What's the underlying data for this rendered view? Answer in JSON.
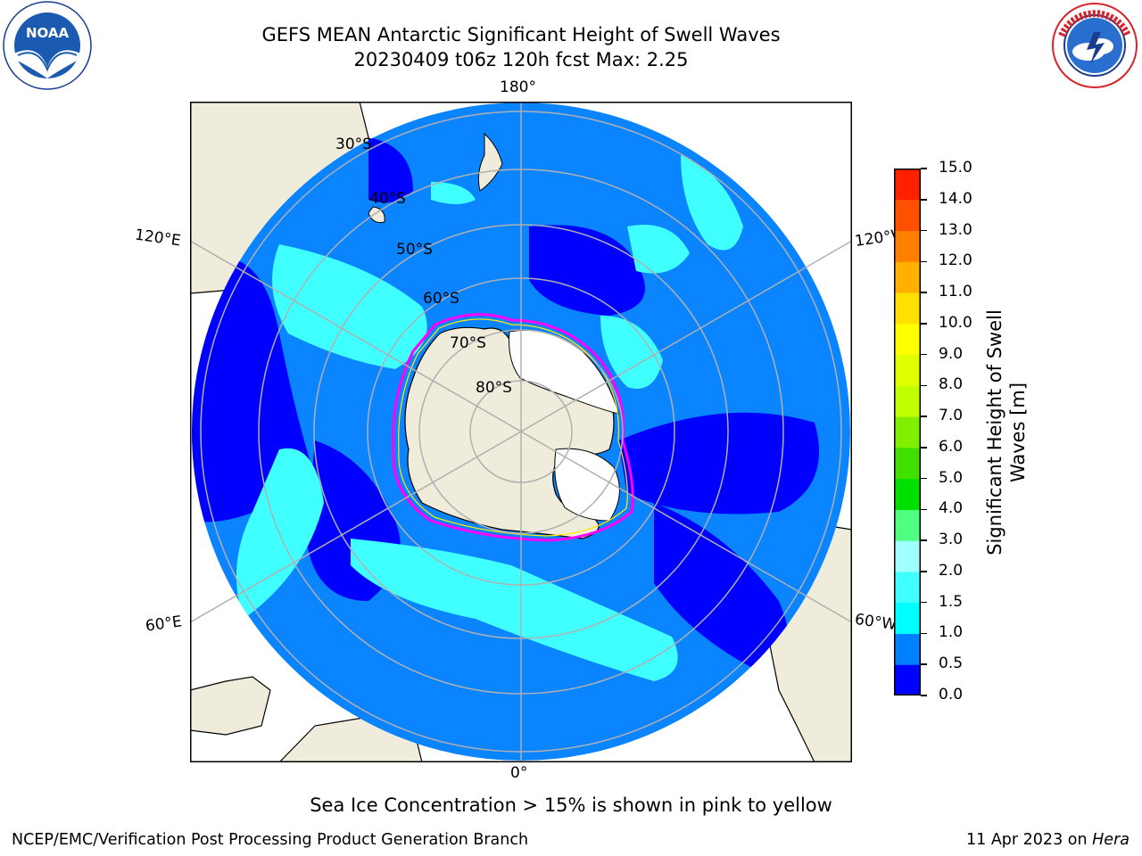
{
  "header": {
    "title_line1": "GEFS MEAN Antarctic Significant Height of Swell Waves",
    "title_line2": "20230409 t06z 120h fcst   Max: 2.25"
  },
  "logos": {
    "noaa": {
      "text": "NOAA",
      "ring_text": "NATIONAL OCEANIC AND ATMOSPHERIC ADMINISTRATION · U.S. DEPARTMENT OF COMMERCE"
    },
    "nws": {
      "ring_text": "NATIONAL WEATHER SERVICE"
    }
  },
  "map": {
    "lon_labels": {
      "top": "180°",
      "bottom": "0°",
      "upper_left": "120°E",
      "upper_right": "120°W",
      "lower_left": "60°E",
      "lower_right": "60°W"
    },
    "lat_labels": [
      "30°S",
      "40°S",
      "50°S",
      "60°S",
      "70°S",
      "80°S"
    ],
    "colors": {
      "land": "#efecdc",
      "ice_edge": [
        "#ff00ff",
        "#ffff00"
      ],
      "grid": "#b0b0b0"
    }
  },
  "colorbar": {
    "label": "Significant Height of Swell Waves [m]",
    "ticks": [
      "0.0",
      "0.5",
      "1.0",
      "1.5",
      "2.0",
      "3.0",
      "4.0",
      "5.0",
      "6.0",
      "7.0",
      "8.0",
      "9.0",
      "10.0",
      "11.0",
      "12.0",
      "13.0",
      "14.0",
      "15.0"
    ],
    "colors": [
      "#0000ff",
      "#0080ff",
      "#00ffff",
      "#40ffff",
      "#a0ffff",
      "#50ff80",
      "#00e000",
      "#40e000",
      "#80f000",
      "#c0ff00",
      "#e0ff00",
      "#ffff00",
      "#ffe000",
      "#ffb000",
      "#ff8000",
      "#ff5000",
      "#ff2000"
    ]
  },
  "note": "Sea Ice Concentration > 15% is shown in pink to yellow",
  "footer": {
    "left": "NCEP/EMC/Verification Post Processing Product Generation Branch",
    "right_prefix": "11 Apr 2023 on ",
    "right_host": "Hera"
  }
}
